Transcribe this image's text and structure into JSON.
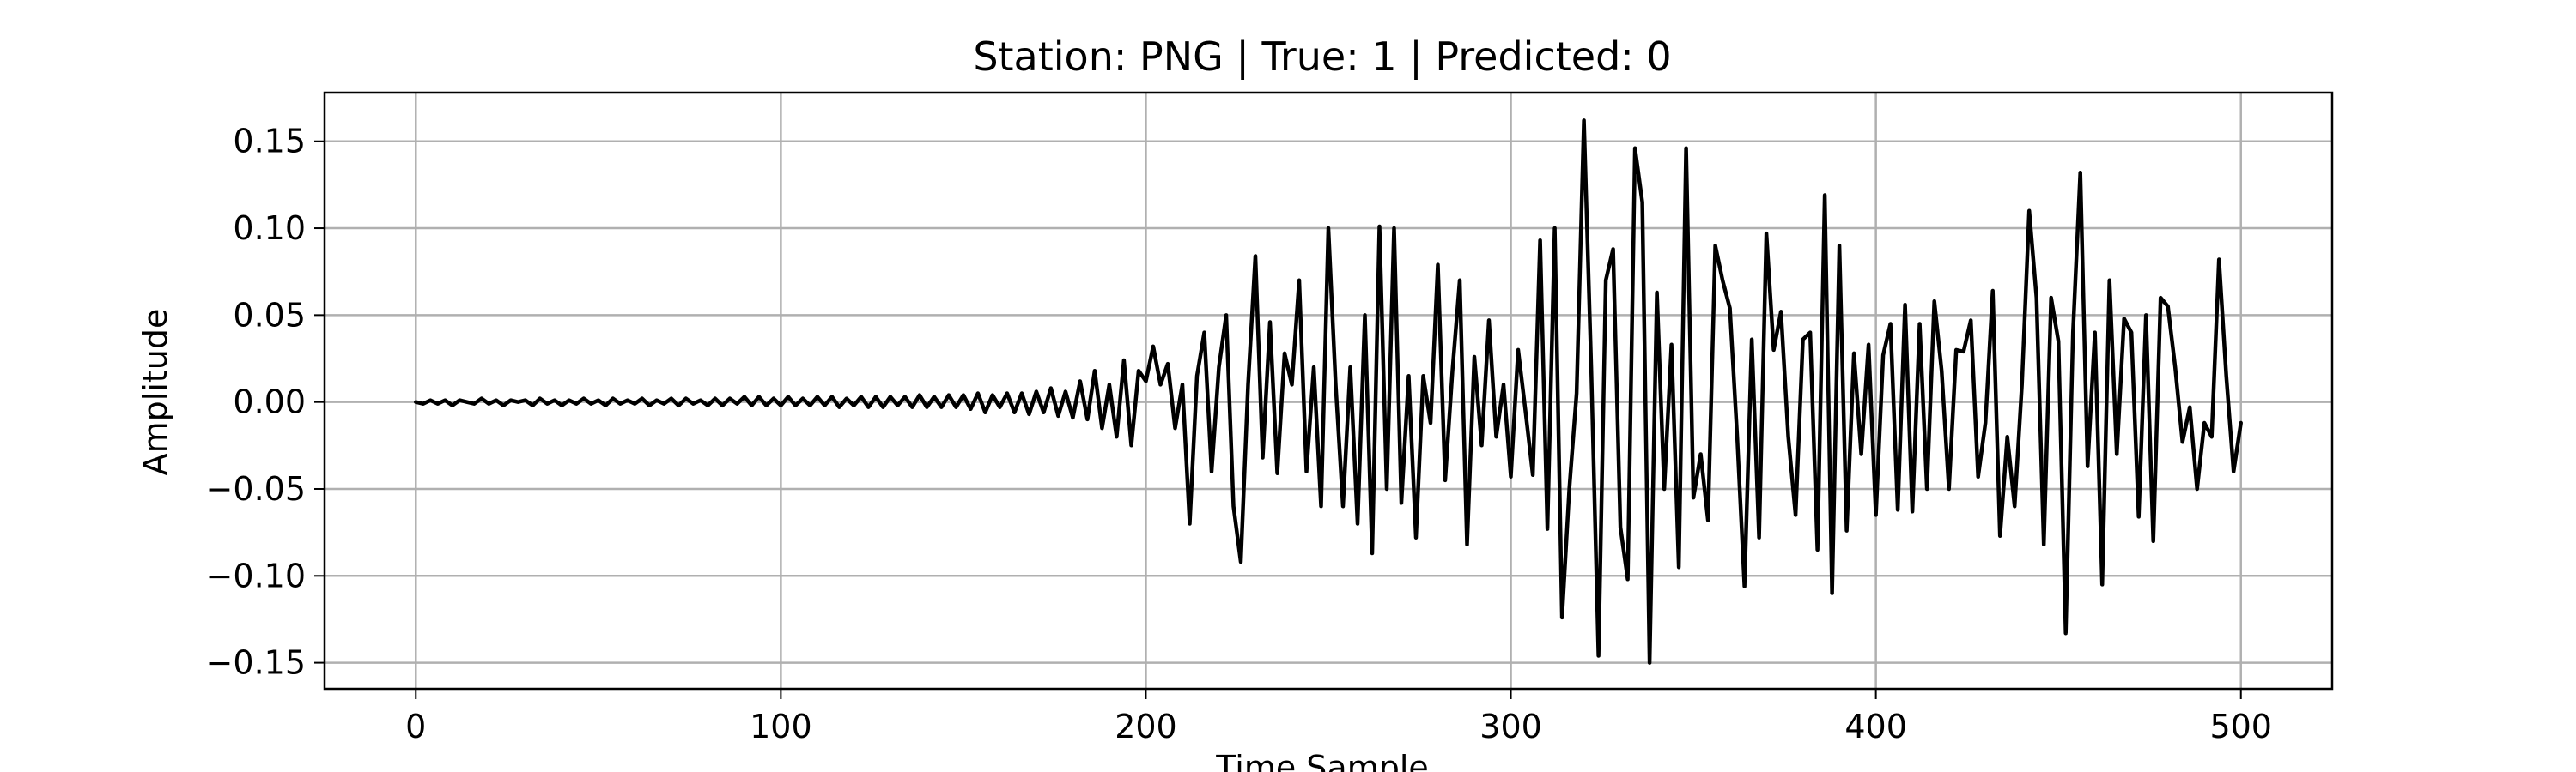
{
  "chart_data": {
    "type": "line",
    "title": "Station: PNG | True: 1 | Predicted: 0",
    "xlabel": "Time Sample",
    "ylabel": "Amplitude",
    "xlim": [
      -25,
      525
    ],
    "ylim": [
      -0.165,
      0.178
    ],
    "x_ticks": [
      0,
      100,
      200,
      300,
      400,
      500
    ],
    "x_tick_labels": [
      "0",
      "100",
      "200",
      "300",
      "400",
      "500"
    ],
    "y_ticks": [
      0.15,
      0.1,
      0.05,
      0.0,
      -0.05,
      -0.1,
      -0.15
    ],
    "y_tick_labels": [
      "0.15",
      "0.10",
      "0.05",
      "0.00",
      "−0.05",
      "−0.10",
      "−0.15"
    ],
    "grid": true,
    "line_color": "#000000",
    "grid_color": "#b0b0b0",
    "series": [
      {
        "x": [
          0,
          2,
          4,
          6,
          8,
          10,
          12,
          14,
          16,
          18,
          20,
          22,
          24,
          26,
          28,
          30,
          32,
          34,
          36,
          38,
          40,
          42,
          44,
          46,
          48,
          50,
          52,
          54,
          56,
          58,
          60,
          62,
          64,
          66,
          68,
          70,
          72,
          74,
          76,
          78,
          80,
          82,
          84,
          86,
          88,
          90,
          92,
          94,
          96,
          98,
          100,
          102,
          104,
          106,
          108,
          110,
          112,
          114,
          116,
          118,
          120,
          122,
          124,
          126,
          128,
          130,
          132,
          134,
          136,
          138,
          140,
          142,
          144,
          146,
          148,
          150,
          152,
          154,
          156,
          158,
          160,
          162,
          164,
          166,
          168,
          170,
          172,
          174,
          176,
          178,
          180,
          182,
          184,
          186,
          188,
          190,
          192,
          194,
          196,
          198,
          200,
          202,
          204,
          206,
          208,
          210,
          212,
          214,
          216,
          218,
          220,
          222,
          224,
          226,
          228,
          230,
          232,
          234,
          236,
          238,
          240,
          242,
          244,
          246,
          248,
          250,
          252,
          254,
          256,
          258,
          260,
          262,
          264,
          266,
          268,
          270,
          272,
          274,
          276,
          278,
          280,
          282,
          284,
          286,
          288,
          290,
          292,
          294,
          296,
          298,
          300,
          302,
          304,
          306,
          308,
          310,
          312,
          314,
          316,
          318,
          320,
          322,
          324,
          326,
          328,
          330,
          332,
          334,
          336,
          338,
          340,
          342,
          344,
          346,
          348,
          350,
          352,
          354,
          356,
          358,
          360,
          362,
          364,
          366,
          368,
          370,
          372,
          374,
          376,
          378,
          380,
          382,
          384,
          386,
          388,
          390,
          392,
          394,
          396,
          398,
          400,
          402,
          404,
          406,
          408,
          410,
          412,
          414,
          416,
          418,
          420,
          422,
          424,
          426,
          428,
          430,
          432,
          434,
          436,
          438,
          440,
          442,
          444,
          446,
          448,
          450,
          452,
          454,
          456,
          458,
          460,
          462,
          464,
          466,
          468,
          470,
          472,
          474,
          476,
          478,
          480,
          482,
          484,
          486,
          488,
          490,
          492,
          494,
          496,
          498,
          500
        ],
        "values": [
          0.0,
          -0.001,
          0.001,
          -0.001,
          0.001,
          -0.002,
          0.001,
          0.0,
          -0.001,
          0.002,
          -0.001,
          0.001,
          -0.002,
          0.001,
          0.0,
          0.001,
          -0.002,
          0.002,
          -0.001,
          0.001,
          -0.002,
          0.001,
          -0.001,
          0.002,
          -0.001,
          0.001,
          -0.002,
          0.002,
          -0.001,
          0.001,
          -0.001,
          0.002,
          -0.002,
          0.001,
          -0.001,
          0.002,
          -0.002,
          0.002,
          -0.001,
          0.001,
          -0.002,
          0.002,
          -0.002,
          0.002,
          -0.001,
          0.003,
          -0.002,
          0.003,
          -0.002,
          0.002,
          -0.002,
          0.003,
          -0.002,
          0.002,
          -0.002,
          0.003,
          -0.002,
          0.003,
          -0.003,
          0.002,
          -0.002,
          0.003,
          -0.003,
          0.003,
          -0.003,
          0.003,
          -0.002,
          0.003,
          -0.003,
          0.004,
          -0.003,
          0.003,
          -0.003,
          0.004,
          -0.003,
          0.004,
          -0.004,
          0.005,
          -0.006,
          0.004,
          -0.003,
          0.005,
          -0.006,
          0.005,
          -0.007,
          0.006,
          -0.006,
          0.008,
          -0.008,
          0.006,
          -0.009,
          0.012,
          -0.01,
          0.018,
          -0.015,
          0.01,
          -0.02,
          0.024,
          -0.025,
          0.018,
          0.012,
          0.032,
          0.01,
          0.022,
          -0.015,
          0.01,
          -0.07,
          0.015,
          0.04,
          -0.04,
          0.02,
          0.05,
          -0.06,
          -0.092,
          0.01,
          0.084,
          -0.032,
          0.046,
          -0.041,
          0.028,
          0.01,
          0.07,
          -0.04,
          0.02,
          -0.06,
          0.1,
          0.01,
          -0.06,
          0.02,
          -0.07,
          0.05,
          -0.087,
          0.101,
          -0.05,
          0.1,
          -0.058,
          0.015,
          -0.078,
          0.015,
          -0.012,
          0.079,
          -0.045,
          0.018,
          0.07,
          -0.082,
          0.026,
          -0.025,
          0.047,
          -0.02,
          0.01,
          -0.043,
          0.03,
          -0.005,
          -0.042,
          0.093,
          -0.073,
          0.1,
          -0.124,
          -0.05,
          0.005,
          0.162,
          0.02,
          -0.146,
          0.07,
          0.088,
          -0.072,
          -0.102,
          0.146,
          0.115,
          -0.15,
          0.063,
          -0.05,
          0.033,
          -0.095,
          0.146,
          -0.055,
          -0.03,
          -0.068,
          0.09,
          0.07,
          0.054,
          -0.02,
          -0.106,
          0.036,
          -0.078,
          0.097,
          0.03,
          0.052,
          -0.02,
          -0.065,
          0.036,
          0.04,
          -0.085,
          0.119,
          -0.11,
          0.09,
          -0.074,
          0.028,
          -0.03,
          0.033,
          -0.065,
          0.027,
          0.045,
          -0.062,
          0.056,
          -0.063,
          0.045,
          -0.05,
          0.058,
          0.018,
          -0.05,
          0.03,
          0.029,
          0.047,
          -0.043,
          -0.012,
          0.064,
          -0.077,
          -0.02,
          -0.06,
          0.01,
          0.11,
          0.06,
          -0.082,
          0.06,
          0.035,
          -0.133,
          0.04,
          0.132,
          -0.037,
          0.04,
          -0.105,
          0.07,
          -0.03,
          0.048,
          0.04,
          -0.066,
          0.05,
          -0.08,
          0.06,
          0.055,
          0.02,
          -0.023,
          -0.003,
          -0.05,
          -0.012,
          -0.02,
          0.082,
          0.015,
          -0.04,
          -0.012
        ]
      }
    ]
  }
}
